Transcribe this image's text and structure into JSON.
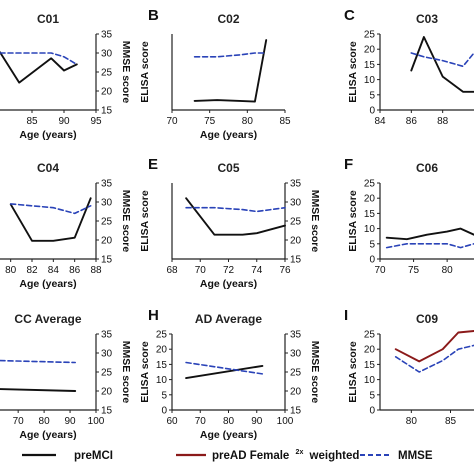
{
  "colors": {
    "premci": "#111111",
    "pread": "#8b1a1a",
    "mmse": "#2a43b8"
  },
  "legend": {
    "premci": "preMCI",
    "pread": "preAD Female",
    "pread_sup": "2x",
    "pread_suffix": "weighted",
    "mmse": "MMSE"
  },
  "chart_data": [
    {
      "id": "C01",
      "label": "",
      "title": "C01",
      "type": "line",
      "xlabel": "Age (years)",
      "ylabel_left": "",
      "ylabel_right": "MMSE score",
      "xticks": [
        "85",
        "90",
        "95"
      ],
      "xlim": [
        80,
        95
      ],
      "yticks_left": [],
      "ylim_left": [
        0,
        25
      ],
      "yticks_right": [
        "15",
        "20",
        "25",
        "30",
        "35"
      ],
      "ylim_right": [
        15,
        35
      ],
      "series": [
        {
          "kind": "premci",
          "axis": "left",
          "x": [
            80,
            83,
            88,
            90,
            92
          ],
          "y": [
            19,
            9,
            17,
            13,
            15
          ]
        },
        {
          "kind": "mmse",
          "axis": "right",
          "x": [
            80,
            83,
            88,
            90,
            92
          ],
          "y": [
            30,
            30,
            30,
            29,
            27
          ]
        }
      ]
    },
    {
      "id": "C02",
      "label": "B",
      "title": "C02",
      "type": "line",
      "xlabel": "Age (years)",
      "ylabel_left": "ELISA score",
      "ylabel_right": "",
      "xticks": [
        "70",
        "75",
        "80",
        "85"
      ],
      "xlim": [
        70,
        85
      ],
      "yticks_left": [],
      "ylim_left": [
        0,
        50
      ],
      "yticks_right": [],
      "ylim_right": [
        15,
        35
      ],
      "series": [
        {
          "kind": "premci",
          "axis": "left",
          "x": [
            73,
            76,
            79,
            81,
            82.5
          ],
          "y": [
            6,
            6.5,
            6,
            5.5,
            46
          ]
        },
        {
          "kind": "mmse",
          "axis": "right",
          "x": [
            73,
            76,
            79,
            81,
            82.5
          ],
          "y": [
            29,
            29,
            29.5,
            30,
            30
          ]
        }
      ]
    },
    {
      "id": "C03",
      "label": "C",
      "title": "C03",
      "type": "line",
      "xlabel": "",
      "ylabel_left": "ELISA score",
      "ylabel_right": "",
      "xticks": [
        "84",
        "86",
        "88",
        "90"
      ],
      "xlim": [
        84,
        90
      ],
      "yticks_left": [
        "0",
        "5",
        "10",
        "15",
        "20",
        "25"
      ],
      "ylim_left": [
        0,
        25
      ],
      "yticks_right": [],
      "ylim_right": [
        15,
        35
      ],
      "series": [
        {
          "kind": "premci",
          "axis": "left",
          "x": [
            86,
            86.8,
            88,
            89.3,
            90
          ],
          "y": [
            13,
            24,
            11,
            6,
            6
          ]
        },
        {
          "kind": "mmse",
          "axis": "right",
          "x": [
            86,
            86.8,
            88,
            89.3,
            90
          ],
          "y": [
            30,
            29,
            28,
            26.5,
            30
          ]
        }
      ]
    },
    {
      "id": "C04",
      "label": "",
      "title": "C04",
      "type": "line",
      "xlabel": "Age (years)",
      "ylabel_left": "",
      "ylabel_right": "MMSE score",
      "xticks": [
        "80",
        "82",
        "84",
        "86",
        "88"
      ],
      "xlim": [
        79,
        88
      ],
      "yticks_left": [],
      "ylim_left": [
        0,
        25
      ],
      "yticks_right": [
        "15",
        "20",
        "25",
        "30",
        "35"
      ],
      "ylim_right": [
        15,
        35
      ],
      "series": [
        {
          "kind": "premci",
          "axis": "left",
          "x": [
            80,
            82,
            84,
            86,
            87.5
          ],
          "y": [
            18,
            6,
            6,
            7,
            20
          ]
        },
        {
          "kind": "mmse",
          "axis": "right",
          "x": [
            80,
            82,
            84,
            86,
            87.5
          ],
          "y": [
            29.5,
            29,
            28.5,
            27,
            29
          ]
        }
      ]
    },
    {
      "id": "C05",
      "label": "E",
      "title": "C05",
      "type": "line",
      "xlabel": "Age (years)",
      "ylabel_left": "ELISA score",
      "ylabel_right": "MMSE score",
      "xticks": [
        "68",
        "70",
        "72",
        "74",
        "76"
      ],
      "xlim": [
        68,
        76
      ],
      "yticks_left": [],
      "ylim_left": [
        0,
        25
      ],
      "yticks_right": [
        "15",
        "20",
        "25",
        "30",
        "35"
      ],
      "ylim_right": [
        15,
        35
      ],
      "series": [
        {
          "kind": "premci",
          "axis": "left",
          "x": [
            69,
            71,
            73,
            74,
            76
          ],
          "y": [
            20,
            8,
            8,
            8.5,
            11
          ]
        },
        {
          "kind": "mmse",
          "axis": "right",
          "x": [
            69,
            71,
            73,
            74,
            76
          ],
          "y": [
            28.5,
            28.5,
            28,
            27.5,
            28.5
          ]
        }
      ]
    },
    {
      "id": "C06",
      "label": "F",
      "title": "C06",
      "type": "line",
      "xlabel": "",
      "ylabel_left": "ELISA score",
      "ylabel_right": "",
      "xticks": [
        "70",
        "75",
        "80"
      ],
      "xlim": [
        70,
        84
      ],
      "yticks_left": [
        "0",
        "5",
        "10",
        "15",
        "20",
        "25"
      ],
      "ylim_left": [
        0,
        25
      ],
      "yticks_right": [],
      "ylim_right": [
        15,
        35
      ],
      "series": [
        {
          "kind": "premci",
          "axis": "left",
          "x": [
            71,
            74,
            77,
            80,
            82,
            84
          ],
          "y": [
            7,
            6.5,
            8,
            9,
            10,
            8
          ]
        },
        {
          "kind": "mmse",
          "axis": "right",
          "x": [
            71,
            74,
            77,
            80,
            82,
            84
          ],
          "y": [
            18,
            19,
            19,
            19,
            18,
            19
          ]
        }
      ]
    },
    {
      "id": "CC",
      "label": "",
      "title": "CC Average",
      "type": "line",
      "xlabel": "Age (years)",
      "ylabel_left": "",
      "ylabel_right": "MMSE score",
      "xticks": [
        "70",
        "80",
        "90",
        "100"
      ],
      "xlim": [
        63,
        100
      ],
      "yticks_left": [],
      "ylim_left": [
        0,
        40
      ],
      "yticks_right": [
        "15",
        "20",
        "25",
        "30",
        "35"
      ],
      "ylim_right": [
        15,
        35
      ],
      "series": [
        {
          "kind": "premci",
          "axis": "right",
          "x": [
            63,
            92
          ],
          "y": [
            20.5,
            20
          ]
        },
        {
          "kind": "mmse",
          "axis": "right",
          "x": [
            63,
            92
          ],
          "y": [
            28,
            27.5
          ]
        }
      ]
    },
    {
      "id": "AD",
      "label": "H",
      "title": "AD Average",
      "type": "line",
      "xlabel": "Age (years)",
      "ylabel_left": "ELISA score",
      "ylabel_right": "MMSE score",
      "xticks": [
        "60",
        "70",
        "80",
        "90",
        "100"
      ],
      "xlim": [
        60,
        100
      ],
      "yticks_left": [
        "0",
        "5",
        "10",
        "15",
        "20",
        "25"
      ],
      "ylim_left": [
        0,
        25
      ],
      "yticks_right": [
        "15",
        "20",
        "25",
        "30",
        "35"
      ],
      "ylim_right": [
        15,
        35
      ],
      "series": [
        {
          "kind": "premci",
          "axis": "left",
          "x": [
            65,
            92
          ],
          "y": [
            10.5,
            14.5
          ]
        },
        {
          "kind": "mmse",
          "axis": "right",
          "x": [
            65,
            92
          ],
          "y": [
            27.5,
            24.5
          ]
        }
      ]
    },
    {
      "id": "C09",
      "label": "I",
      "title": "C09",
      "type": "line",
      "xlabel": "",
      "ylabel_left": "ELISA score",
      "ylabel_right": "",
      "xticks": [
        "80",
        "85"
      ],
      "xlim": [
        76,
        88
      ],
      "yticks_left": [
        "0",
        "5",
        "10",
        "15",
        "20",
        "25"
      ],
      "ylim_left": [
        0,
        25
      ],
      "yticks_right": [],
      "ylim_right": [
        15,
        35
      ],
      "series": [
        {
          "kind": "pread",
          "axis": "left",
          "x": [
            78,
            81,
            84,
            86,
            88
          ],
          "y": [
            20,
            16,
            20,
            25.5,
            26
          ]
        },
        {
          "kind": "mmse",
          "axis": "right",
          "x": [
            78,
            81,
            84,
            86,
            88
          ],
          "y": [
            29,
            25,
            28,
            31,
            32
          ]
        }
      ]
    }
  ]
}
